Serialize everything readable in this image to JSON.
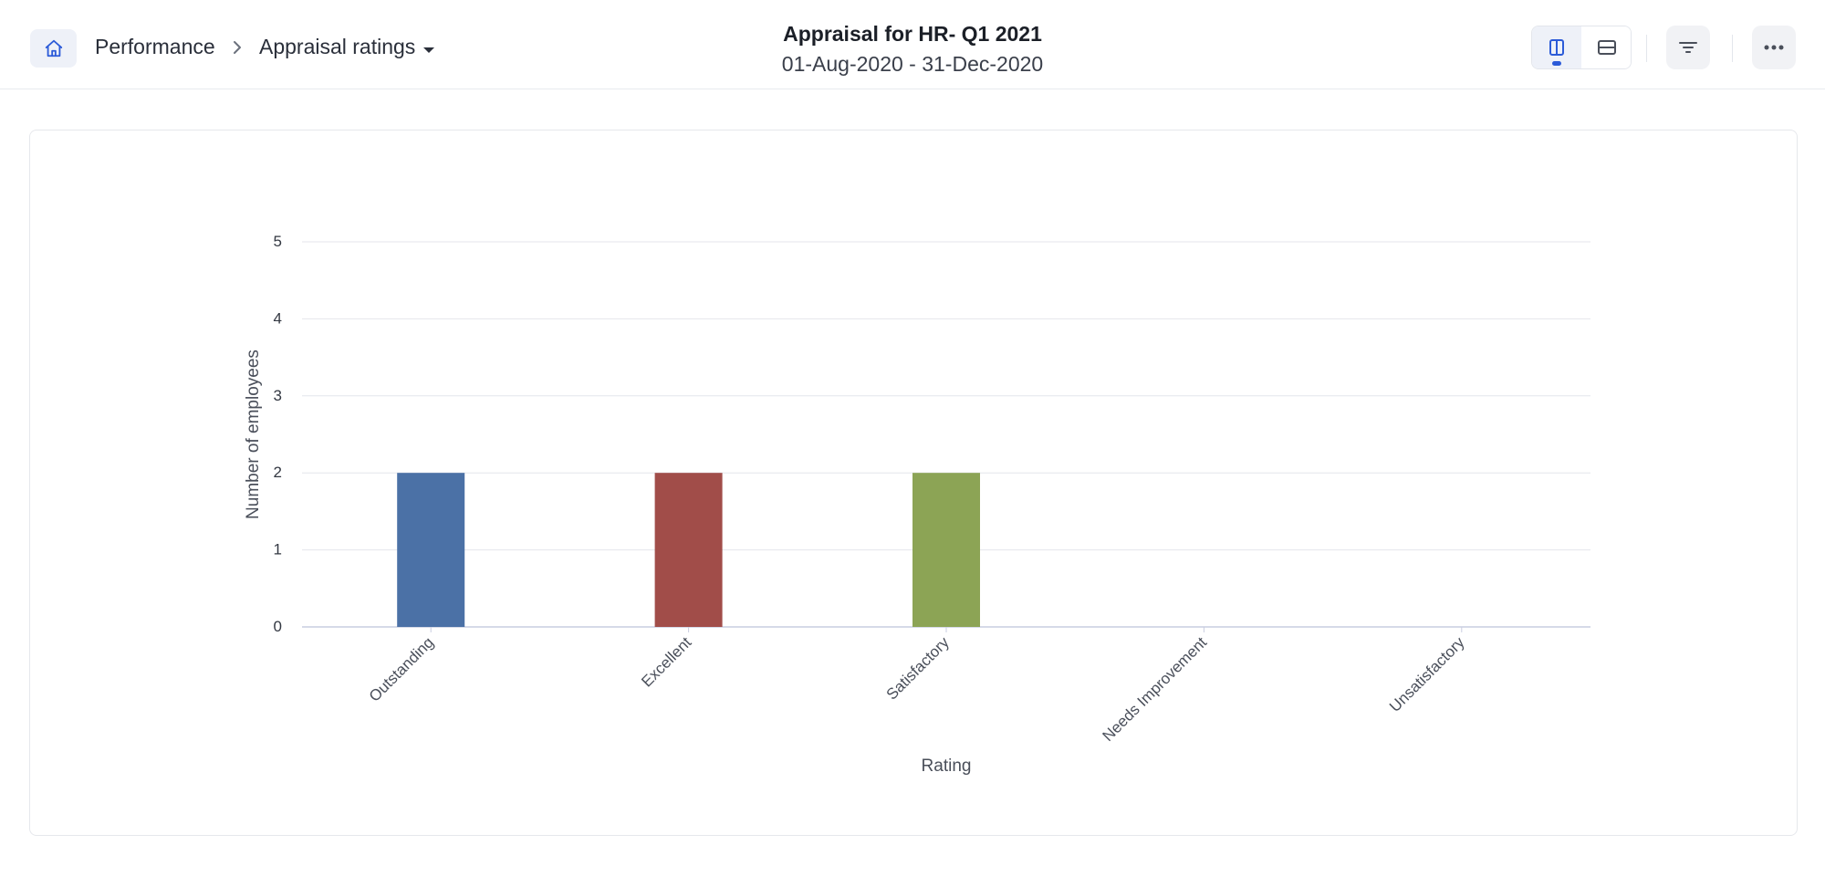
{
  "breadcrumb": {
    "home_icon": "home-icon",
    "section": "Performance",
    "page": "Appraisal ratings"
  },
  "header": {
    "title": "Appraisal for HR- Q1 2021",
    "date_range": "01-Aug-2020 - 31-Dec-2020"
  },
  "toolbar": {
    "view_split_icon": "columns-icon",
    "view_stack_icon": "rows-icon",
    "filter_icon": "filter-icon",
    "more_icon": "more-horizontal-icon",
    "accent": "#2c5bd8"
  },
  "chart_data": {
    "type": "bar",
    "categories": [
      "Outstanding",
      "Excellent",
      "Satisfactory",
      "Needs Improvement",
      "Unsatisfactory"
    ],
    "values": [
      2,
      2,
      2,
      0,
      0
    ],
    "colors": [
      "#4b71a6",
      "#a14d49",
      "#8ca455",
      "#7a5a9e",
      "#4aa0b8"
    ],
    "xlabel": "Rating",
    "ylabel": "Number of employees",
    "ylim": [
      0,
      5
    ],
    "yticks": [
      0,
      1,
      2,
      3,
      4,
      5
    ],
    "grid": true,
    "legend": "none"
  }
}
